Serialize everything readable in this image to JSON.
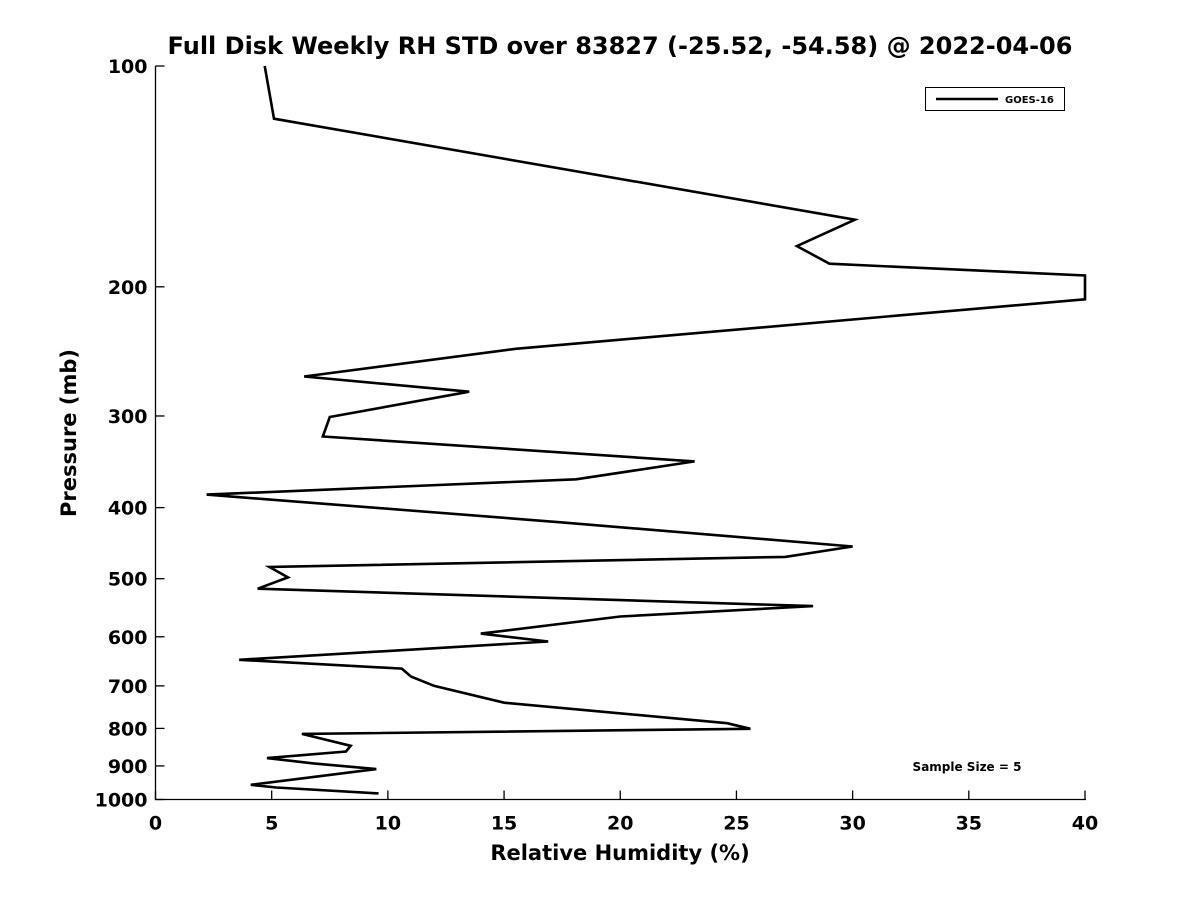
{
  "chart_data": {
    "type": "line",
    "title": "Full Disk Weekly RH STD over 83827 (-25.52, -54.58) @ 2022-04-06",
    "xlabel": "Relative Humidity (%)",
    "ylabel": "Pressure (mb)",
    "xlim": [
      0,
      40
    ],
    "ylim": [
      100,
      1000
    ],
    "yscale": "log",
    "y_reversed": true,
    "grid": false,
    "x_ticks": [
      0,
      5,
      10,
      15,
      20,
      25,
      30,
      35,
      40
    ],
    "y_ticks": [
      100,
      200,
      300,
      400,
      500,
      600,
      700,
      800,
      900,
      1000
    ],
    "legend": {
      "position": "top-right",
      "entries": [
        "GOES-16"
      ]
    },
    "annotation": "Sample Size = 5",
    "series": [
      {
        "name": "GOES-16",
        "color": "#000000",
        "x": [
          4.7,
          5.1,
          30.1,
          27.6,
          29.0,
          40.0,
          40.0,
          15.5,
          6.4,
          13.5,
          7.5,
          7.2,
          23.2,
          18.1,
          2.2,
          17.5,
          30.0,
          27.1,
          4.9,
          5.7,
          4.4,
          28.3,
          20.0,
          14.0,
          16.9,
          3.6,
          10.6,
          11.0,
          12.0,
          15.0,
          24.6,
          25.6,
          6.3,
          8.4,
          8.2,
          4.8,
          6.8,
          9.5,
          4.1,
          5.2,
          9.6
        ],
        "y": [
          100,
          118,
          162,
          176,
          186,
          193,
          208,
          243,
          265,
          278,
          301,
          320,
          346,
          366,
          384,
          419,
          452,
          467,
          482,
          498,
          516,
          545,
          563,
          594,
          609,
          645,
          663,
          680,
          700,
          738,
          787,
          801,
          814,
          845,
          860,
          878,
          893,
          909,
          955,
          963,
          981
        ]
      }
    ]
  }
}
